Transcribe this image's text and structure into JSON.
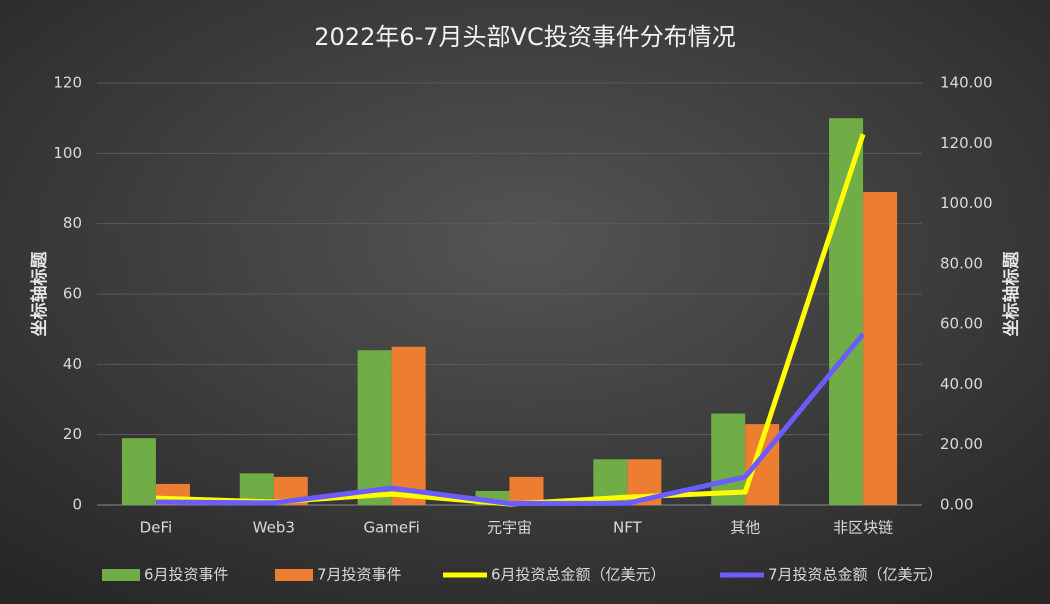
{
  "chart_data": {
    "type": "bar",
    "title": "2022年6-7月头部VC投资事件分布情况",
    "y_label": "坐标轴标题",
    "y2_label": "坐标轴标题",
    "categories": [
      "DeFi",
      "Web3",
      "GameFi",
      "元宇宙",
      "NFT",
      "其他",
      "非区块链"
    ],
    "series": [
      {
        "name": "6月投资事件",
        "type": "bar",
        "color": "#70ad47",
        "values": [
          19,
          9,
          44,
          4,
          13,
          26,
          110
        ]
      },
      {
        "name": "7月投资事件",
        "type": "bar",
        "color": "#ed7d31",
        "values": [
          6,
          8,
          45,
          8,
          13,
          23,
          89
        ]
      },
      {
        "name": "6月投资总金额（亿美元）",
        "type": "line",
        "axis": "y2",
        "color": "#ffff00",
        "values": [
          2.3,
          1,
          3.6,
          0.3,
          2.6,
          4.3,
          123
        ]
      },
      {
        "name": "7月投资总金额（亿美元）",
        "type": "line",
        "axis": "y2",
        "color": "#6a5cff",
        "values": [
          1,
          0.7,
          5.6,
          0.5,
          0.6,
          9.3,
          56.7
        ]
      }
    ],
    "ylim": [
      0,
      120
    ],
    "yticks": [
      0,
      20,
      40,
      60,
      80,
      100,
      120
    ],
    "y2lim": [
      0,
      140
    ],
    "y2ticks": [
      {
        "value": 0,
        "label": "0.00"
      },
      {
        "value": 20,
        "label": "20.00"
      },
      {
        "value": 40,
        "label": "40.00"
      },
      {
        "value": 60,
        "label": "60.00"
      },
      {
        "value": 80,
        "label": "80.00"
      },
      {
        "value": 100,
        "label": "100.00"
      },
      {
        "value": 120,
        "label": "120.00"
      },
      {
        "value": 140,
        "label": "140.00"
      }
    ],
    "grid": true
  }
}
